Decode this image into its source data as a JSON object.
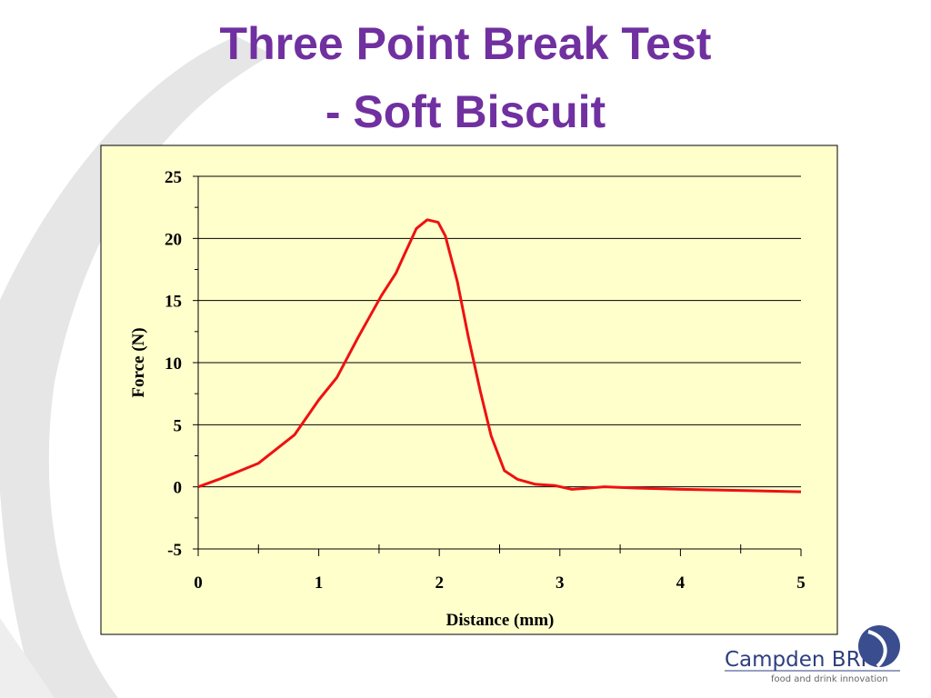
{
  "chart_data": {
    "type": "line",
    "title": [
      "Three Point Break Test",
      "- Soft Biscuit"
    ],
    "xlabel": "Distance (mm)",
    "ylabel": "Force (N)",
    "x": [
      0,
      0.17,
      0.35,
      0.5,
      0.8,
      1.0,
      1.15,
      1.33,
      1.52,
      1.64,
      1.71,
      1.81,
      1.9,
      1.99,
      2.05,
      2.15,
      2.24,
      2.34,
      2.43,
      2.54,
      2.65,
      2.8,
      2.96,
      3.1,
      3.37,
      3.63,
      4.0,
      4.53,
      5.0
    ],
    "series": [
      {
        "name": "Force",
        "color": "#ee1111",
        "values": [
          0,
          0.6,
          1.3,
          1.9,
          4.2,
          7.0,
          8.8,
          12.1,
          15.4,
          17.2,
          18.7,
          20.8,
          21.5,
          21.3,
          20.2,
          16.5,
          12.1,
          7.7,
          4.1,
          1.3,
          0.6,
          0.2,
          0.1,
          -0.2,
          0.0,
          -0.1,
          -0.2,
          -0.3,
          -0.4
        ]
      }
    ],
    "xlim": [
      0,
      5
    ],
    "xticks": [
      0,
      1,
      2,
      3,
      4,
      5
    ],
    "xminorticks": [
      0.5,
      1.5,
      2.5,
      3.5,
      4.5
    ],
    "ylim": [
      -5,
      25
    ],
    "yticks": [
      -5,
      0,
      5,
      10,
      15,
      20,
      25
    ],
    "yminorticks": [
      -2.5,
      2.5,
      7.5,
      12.5,
      17.5,
      22.5
    ],
    "grid": true,
    "plot_background": "#ffffcc"
  },
  "logo": {
    "name": "Campden BRI",
    "tagline": "food and drink innovation"
  }
}
